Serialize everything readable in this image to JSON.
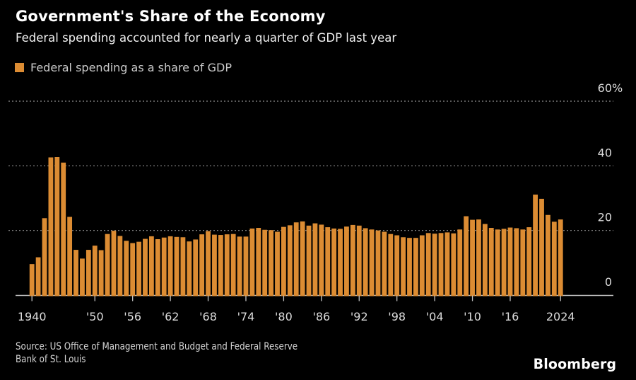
{
  "header": {
    "title": "Government's Share of the Economy",
    "subtitle": "Federal spending accounted for nearly a quarter of GDP last year"
  },
  "legend": {
    "label": "Federal spending as a share of GDP"
  },
  "chart_data": {
    "type": "bar",
    "title": "Government's Share of the Economy",
    "series_name": "Federal spending as a share of GDP",
    "unit": "percent of GDP",
    "ylim": [
      0,
      60
    ],
    "yticks": [
      0,
      20,
      40,
      60
    ],
    "ytick_labels": [
      "0",
      "20",
      "40",
      "60%"
    ],
    "grid": "dotted horizontal gridlines, solid zero baseline",
    "legend_position": "top-left",
    "xticks": [
      {
        "year": 1940,
        "label": "1940"
      },
      {
        "year": 1950,
        "label": "'50"
      },
      {
        "year": 1956,
        "label": "'56"
      },
      {
        "year": 1962,
        "label": "'62"
      },
      {
        "year": 1968,
        "label": "'68"
      },
      {
        "year": 1974,
        "label": "'74"
      },
      {
        "year": 1980,
        "label": "'80"
      },
      {
        "year": 1986,
        "label": "'86"
      },
      {
        "year": 1992,
        "label": "'92"
      },
      {
        "year": 1998,
        "label": "'98"
      },
      {
        "year": 2004,
        "label": "'04"
      },
      {
        "year": 2010,
        "label": "'10"
      },
      {
        "year": 2016,
        "label": "'16"
      },
      {
        "year": 2024,
        "label": "2024"
      }
    ],
    "years": [
      1940,
      1941,
      1942,
      1943,
      1944,
      1945,
      1946,
      1947,
      1948,
      1949,
      1950,
      1951,
      1952,
      1953,
      1954,
      1955,
      1956,
      1957,
      1958,
      1959,
      1960,
      1961,
      1962,
      1963,
      1964,
      1965,
      1966,
      1967,
      1968,
      1969,
      1970,
      1971,
      1972,
      1973,
      1974,
      1975,
      1976,
      1977,
      1978,
      1979,
      1980,
      1981,
      1982,
      1983,
      1984,
      1985,
      1986,
      1987,
      1988,
      1989,
      1990,
      1991,
      1992,
      1993,
      1994,
      1995,
      1996,
      1997,
      1998,
      1999,
      2000,
      2001,
      2002,
      2003,
      2004,
      2005,
      2006,
      2007,
      2008,
      2009,
      2010,
      2011,
      2012,
      2013,
      2014,
      2015,
      2016,
      2017,
      2018,
      2019,
      2020,
      2021,
      2022,
      2023,
      2024
    ],
    "values": [
      9.6,
      11.7,
      23.8,
      42.6,
      42.7,
      41.0,
      24.2,
      14.0,
      11.3,
      14.0,
      15.3,
      13.9,
      18.9,
      19.9,
      18.3,
      16.8,
      16.1,
      16.5,
      17.4,
      18.2,
      17.3,
      17.8,
      18.2,
      18.0,
      17.9,
      16.6,
      17.2,
      18.8,
      19.8,
      18.7,
      18.6,
      18.8,
      18.9,
      18.1,
      18.1,
      20.6,
      20.8,
      20.2,
      20.1,
      19.6,
      21.1,
      21.6,
      22.5,
      22.8,
      21.5,
      22.2,
      21.8,
      21.0,
      20.6,
      20.5,
      21.2,
      21.7,
      21.5,
      20.7,
      20.3,
      20.0,
      19.6,
      18.9,
      18.5,
      17.9,
      17.7,
      17.7,
      18.5,
      19.2,
      19.0,
      19.2,
      19.4,
      19.1,
      20.3,
      24.4,
      23.3,
      23.4,
      22.0,
      20.8,
      20.3,
      20.5,
      20.9,
      20.7,
      20.3,
      21.0,
      31.1,
      29.8,
      24.8,
      22.7,
      23.4
    ]
  },
  "footer": {
    "source": "Source: US Office of Management and Budget and Federal Reserve Bank of St. Louis",
    "brand": "Bloomberg"
  },
  "colors": {
    "background": "#000000",
    "bar": "#DC8C33",
    "grid": "#8E8E8E",
    "axis": "#C4C4C4",
    "title_text": "#FFFFFF",
    "subtitle_text": "#F0F0F0",
    "legend_text": "#C9C9C9",
    "tick_text": "#DCDCDC",
    "footer_text": "#D4D4D4"
  }
}
